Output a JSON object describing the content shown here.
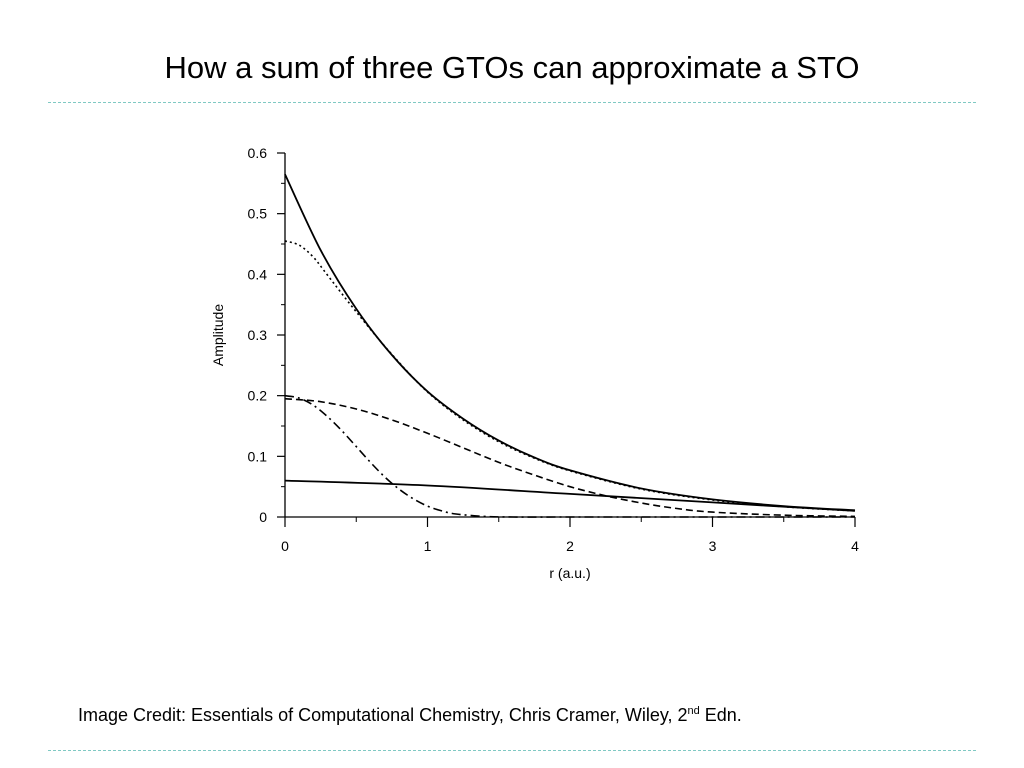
{
  "slide": {
    "title": "How a sum of three GTOs can approximate a STO"
  },
  "credit": {
    "prefix": "Image Credit: Essentials of Computational Chemistry, Chris Cramer, Wiley, 2",
    "superscript": "nd",
    "suffix": " Edn."
  },
  "chart_data": {
    "type": "line",
    "title": "",
    "xlabel": "r (a.u.)",
    "ylabel": "Amplitude",
    "xlim": [
      0,
      4
    ],
    "ylim": [
      0,
      0.6
    ],
    "x_ticks": [
      "0",
      "1",
      "2",
      "3",
      "4"
    ],
    "y_ticks": [
      "0",
      "0.1",
      "0.2",
      "0.3",
      "0.4",
      "0.5",
      "0.6"
    ],
    "grid": false,
    "legend": "none",
    "series": [
      {
        "style": "solid",
        "x": [
          0,
          0.25,
          0.5,
          0.75,
          1.0,
          1.25,
          1.5,
          1.75,
          2.0,
          2.5,
          3.0,
          3.5,
          4.0
        ],
        "values": [
          0.565,
          0.44,
          0.343,
          0.267,
          0.207,
          0.162,
          0.126,
          0.098,
          0.077,
          0.047,
          0.029,
          0.018,
          0.011
        ]
      },
      {
        "style": "dotted",
        "x": [
          0,
          0.1,
          0.2,
          0.3,
          0.5,
          0.75,
          1.0,
          1.25,
          1.5,
          1.75,
          2.0,
          2.5,
          3.0,
          3.5,
          4.0
        ],
        "values": [
          0.455,
          0.448,
          0.428,
          0.398,
          0.338,
          0.268,
          0.206,
          0.16,
          0.124,
          0.097,
          0.076,
          0.046,
          0.028,
          0.017,
          0.01
        ]
      },
      {
        "style": "dashed",
        "x": [
          0,
          0.25,
          0.5,
          0.75,
          1.0,
          1.25,
          1.5,
          1.75,
          2.0,
          2.25,
          2.5,
          2.75,
          3.0,
          3.5,
          4.0
        ],
        "values": [
          0.195,
          0.19,
          0.178,
          0.16,
          0.138,
          0.114,
          0.09,
          0.069,
          0.05,
          0.035,
          0.023,
          0.014,
          0.008,
          0.003,
          0.001
        ]
      },
      {
        "style": "dash-dot",
        "x": [
          0,
          0.1,
          0.2,
          0.3,
          0.4,
          0.5,
          0.6,
          0.7,
          0.8,
          0.9,
          1.0,
          1.1,
          1.2,
          1.4,
          1.6,
          2.0,
          3.0,
          4.0
        ],
        "values": [
          0.2,
          0.196,
          0.184,
          0.165,
          0.142,
          0.116,
          0.09,
          0.066,
          0.046,
          0.03,
          0.018,
          0.01,
          0.005,
          0.001,
          0.0,
          0.0,
          0.0,
          0.0
        ]
      },
      {
        "style": "solid",
        "x": [
          0,
          1,
          2,
          3,
          4
        ],
        "values": [
          0.06,
          0.052,
          0.038,
          0.024,
          0.01
        ]
      }
    ]
  }
}
